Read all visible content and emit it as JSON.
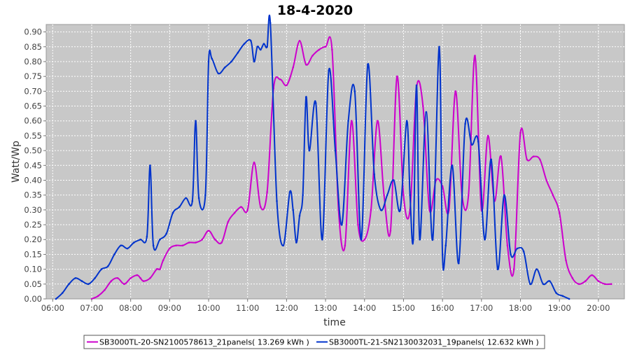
{
  "chart_data": {
    "type": "line",
    "title": "18-4-2020",
    "xlabel": "time",
    "ylabel": "Watt/Wp",
    "xlim": [
      "05:50",
      "20:40"
    ],
    "ylim": [
      0,
      0.925
    ],
    "grid": true,
    "legend_position": "bottom",
    "x_ticks": [
      "06:00",
      "07:00",
      "08:00",
      "09:00",
      "10:00",
      "11:00",
      "12:00",
      "13:00",
      "14:00",
      "15:00",
      "16:00",
      "17:00",
      "18:00",
      "19:00",
      "20:00"
    ],
    "y_ticks": [
      "0.00",
      "0.05",
      "0.10",
      "0.15",
      "0.20",
      "0.25",
      "0.30",
      "0.35",
      "0.40",
      "0.45",
      "0.50",
      "0.55",
      "0.60",
      "0.65",
      "0.70",
      "0.75",
      "0.80",
      "0.85",
      "0.90"
    ],
    "colors": {
      "plot_background": "#c8c8c8",
      "grid": "#ffffff"
    },
    "series": [
      {
        "name": "SB3000TL-20-SN2100578613_21panels( 13.269 kWh )",
        "color": "#cc00cc",
        "x": [
          "07:00",
          "07:10",
          "07:20",
          "07:30",
          "07:40",
          "07:50",
          "08:00",
          "08:10",
          "08:15",
          "08:20",
          "08:30",
          "08:40",
          "08:45",
          "08:50",
          "09:00",
          "09:10",
          "09:20",
          "09:30",
          "09:40",
          "09:50",
          "10:00",
          "10:10",
          "10:20",
          "10:30",
          "10:40",
          "10:50",
          "11:00",
          "11:10",
          "11:20",
          "11:30",
          "11:40",
          "11:50",
          "12:00",
          "12:10",
          "12:20",
          "12:30",
          "12:40",
          "12:50",
          "13:00",
          "13:10",
          "13:20",
          "13:30",
          "13:40",
          "13:50",
          "14:00",
          "14:10",
          "14:20",
          "14:30",
          "14:40",
          "14:50",
          "15:00",
          "15:10",
          "15:20",
          "15:30",
          "15:40",
          "15:50",
          "16:00",
          "16:10",
          "16:20",
          "16:30",
          "16:40",
          "16:50",
          "17:00",
          "17:10",
          "17:20",
          "17:30",
          "17:40",
          "17:50",
          "18:00",
          "18:10",
          "18:20",
          "18:30",
          "18:40",
          "18:50",
          "19:00",
          "19:10",
          "19:20",
          "19:30",
          "19:40",
          "19:50",
          "20:00",
          "20:10",
          "20:20"
        ],
        "y": [
          0.0,
          0.01,
          0.03,
          0.06,
          0.07,
          0.05,
          0.07,
          0.08,
          0.07,
          0.06,
          0.07,
          0.1,
          0.1,
          0.13,
          0.17,
          0.18,
          0.18,
          0.19,
          0.19,
          0.2,
          0.23,
          0.2,
          0.19,
          0.26,
          0.29,
          0.31,
          0.3,
          0.46,
          0.31,
          0.36,
          0.71,
          0.74,
          0.72,
          0.78,
          0.87,
          0.79,
          0.82,
          0.84,
          0.85,
          0.84,
          0.3,
          0.18,
          0.6,
          0.25,
          0.2,
          0.3,
          0.6,
          0.35,
          0.23,
          0.75,
          0.35,
          0.3,
          0.71,
          0.65,
          0.3,
          0.4,
          0.38,
          0.3,
          0.7,
          0.35,
          0.35,
          0.82,
          0.3,
          0.55,
          0.33,
          0.48,
          0.18,
          0.1,
          0.56,
          0.47,
          0.48,
          0.47,
          0.4,
          0.35,
          0.29,
          0.13,
          0.07,
          0.05,
          0.06,
          0.08,
          0.06,
          0.05,
          0.05
        ]
      },
      {
        "name": "SB3000TL-21-SN2130032031_19panels( 12.632 kWh )",
        "color": "#0033cc",
        "x": [
          "06:05",
          "06:15",
          "06:25",
          "06:35",
          "06:45",
          "06:55",
          "07:05",
          "07:15",
          "07:25",
          "07:35",
          "07:45",
          "07:55",
          "08:05",
          "08:15",
          "08:25",
          "08:30",
          "08:35",
          "08:45",
          "08:55",
          "09:05",
          "09:15",
          "09:25",
          "09:35",
          "09:40",
          "09:45",
          "09:55",
          "10:00",
          "10:05",
          "10:15",
          "10:25",
          "10:35",
          "10:45",
          "10:55",
          "11:05",
          "11:10",
          "11:15",
          "11:20",
          "11:25",
          "11:30",
          "11:35",
          "11:45",
          "11:55",
          "12:05",
          "12:10",
          "12:15",
          "12:20",
          "12:25",
          "12:30",
          "12:35",
          "12:45",
          "12:55",
          "13:05",
          "13:15",
          "13:25",
          "13:35",
          "13:45",
          "13:55",
          "14:05",
          "14:15",
          "14:25",
          "14:35",
          "14:45",
          "14:55",
          "15:05",
          "15:10",
          "15:15",
          "15:20",
          "15:25",
          "15:35",
          "15:45",
          "15:55",
          "16:00",
          "16:05",
          "16:15",
          "16:25",
          "16:35",
          "16:45",
          "16:55",
          "17:05",
          "17:15",
          "17:25",
          "17:35",
          "17:45",
          "17:55",
          "18:05",
          "18:15",
          "18:25",
          "18:35",
          "18:45",
          "18:55",
          "19:05",
          "19:15"
        ],
        "y": [
          0.0,
          0.02,
          0.05,
          0.07,
          0.06,
          0.05,
          0.07,
          0.1,
          0.11,
          0.15,
          0.18,
          0.17,
          0.19,
          0.2,
          0.21,
          0.45,
          0.18,
          0.2,
          0.22,
          0.29,
          0.31,
          0.34,
          0.33,
          0.6,
          0.34,
          0.35,
          0.8,
          0.81,
          0.76,
          0.78,
          0.8,
          0.83,
          0.86,
          0.87,
          0.8,
          0.85,
          0.84,
          0.86,
          0.85,
          0.93,
          0.33,
          0.18,
          0.36,
          0.3,
          0.19,
          0.28,
          0.35,
          0.68,
          0.5,
          0.66,
          0.2,
          0.77,
          0.5,
          0.25,
          0.6,
          0.7,
          0.2,
          0.79,
          0.42,
          0.3,
          0.35,
          0.4,
          0.3,
          0.6,
          0.35,
          0.2,
          0.72,
          0.2,
          0.63,
          0.2,
          0.85,
          0.15,
          0.18,
          0.45,
          0.12,
          0.59,
          0.52,
          0.53,
          0.2,
          0.47,
          0.1,
          0.35,
          0.15,
          0.17,
          0.16,
          0.05,
          0.1,
          0.05,
          0.06,
          0.02,
          0.01,
          0.0
        ]
      }
    ]
  }
}
